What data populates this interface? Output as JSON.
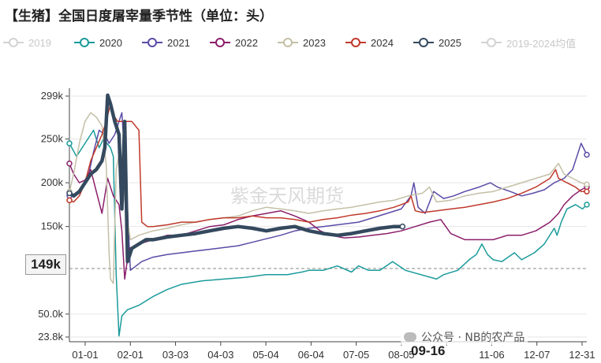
{
  "title": "【生猪】全国日度屠宰量季节性（单位：头）",
  "watermark": "紫金天风期货",
  "footer_credit": "公众号 · NB的农产品",
  "crosshair": {
    "x_label": "09-16",
    "y_label": "149k"
  },
  "chart_data": {
    "type": "line",
    "y_ticks": [
      {
        "value": 23.8,
        "label": "23.8k"
      },
      {
        "value": 50,
        "label": "50.0k"
      },
      {
        "value": 150,
        "label": "150k"
      },
      {
        "value": 200,
        "label": "200k"
      },
      {
        "value": 250,
        "label": "250k"
      },
      {
        "value": 299,
        "label": "299k"
      }
    ],
    "x_ticks": [
      "01-01",
      "02-01",
      "03-03",
      "04-03",
      "05-04",
      "06-04",
      "07-05",
      "08-05",
      "09-16",
      "11-06",
      "12-07",
      "12-31"
    ],
    "ylim": [
      23.8,
      299
    ],
    "series": [
      {
        "name": "2019",
        "color": "#d3d3d3",
        "width": 1.2,
        "values": []
      },
      {
        "name": "2020",
        "color": "#1a9a9a",
        "width": 1.5,
        "values": [
          [
            1,
            245
          ],
          [
            6,
            230
          ],
          [
            12,
            245
          ],
          [
            18,
            260
          ],
          [
            22,
            240
          ],
          [
            25,
            250
          ],
          [
            30,
            240
          ],
          [
            32,
            230
          ],
          [
            34,
            95
          ],
          [
            36,
            25
          ],
          [
            38,
            48
          ],
          [
            42,
            55
          ],
          [
            50,
            60
          ],
          [
            60,
            70
          ],
          [
            70,
            78
          ],
          [
            80,
            84
          ],
          [
            95,
            88
          ],
          [
            110,
            90
          ],
          [
            125,
            92
          ],
          [
            140,
            95
          ],
          [
            155,
            95
          ],
          [
            165,
            98
          ],
          [
            170,
            100
          ],
          [
            180,
            100
          ],
          [
            190,
            105
          ],
          [
            200,
            98
          ],
          [
            205,
            105
          ],
          [
            212,
            100
          ],
          [
            220,
            100
          ],
          [
            229,
            110
          ],
          [
            238,
            100
          ],
          [
            260,
            90
          ],
          [
            265,
            95
          ],
          [
            275,
            100
          ],
          [
            283,
            112
          ],
          [
            288,
            118
          ],
          [
            292,
            130
          ],
          [
            296,
            118
          ],
          [
            300,
            112
          ],
          [
            306,
            110
          ],
          [
            315,
            120
          ],
          [
            320,
            112
          ],
          [
            329,
            120
          ],
          [
            336,
            130
          ],
          [
            343,
            148
          ],
          [
            345,
            140
          ],
          [
            348,
            155
          ],
          [
            352,
            170
          ],
          [
            358,
            175
          ],
          [
            363,
            170
          ],
          [
            366,
            175
          ]
        ]
      },
      {
        "name": "2021",
        "color": "#5b4aa6",
        "width": 1.5,
        "values": [
          [
            1,
            185
          ],
          [
            6,
            188
          ],
          [
            10,
            195
          ],
          [
            14,
            205
          ],
          [
            18,
            235
          ],
          [
            22,
            260
          ],
          [
            26,
            255
          ],
          [
            29,
            245
          ],
          [
            33,
            255
          ],
          [
            36,
            270
          ],
          [
            38,
            280
          ],
          [
            41,
            205
          ],
          [
            44,
            100
          ],
          [
            48,
            105
          ],
          [
            52,
            110
          ],
          [
            60,
            115
          ],
          [
            70,
            118
          ],
          [
            80,
            120
          ],
          [
            90,
            122
          ],
          [
            100,
            124
          ],
          [
            110,
            126
          ],
          [
            120,
            128
          ],
          [
            130,
            132
          ],
          [
            140,
            136
          ],
          [
            150,
            140
          ],
          [
            160,
            145
          ],
          [
            170,
            148
          ],
          [
            180,
            150
          ],
          [
            190,
            152
          ],
          [
            205,
            155
          ],
          [
            215,
            160
          ],
          [
            225,
            165
          ],
          [
            235,
            170
          ],
          [
            242,
            185
          ],
          [
            244,
            200
          ],
          [
            247,
            172
          ],
          [
            252,
            165
          ],
          [
            258,
            190
          ],
          [
            265,
            182
          ],
          [
            272,
            185
          ],
          [
            280,
            190
          ],
          [
            290,
            195
          ],
          [
            298,
            200
          ],
          [
            303,
            195
          ],
          [
            312,
            190
          ],
          [
            320,
            185
          ],
          [
            328,
            188
          ],
          [
            336,
            192
          ],
          [
            343,
            200
          ],
          [
            350,
            205
          ],
          [
            356,
            215
          ],
          [
            360,
            235
          ],
          [
            362,
            245
          ],
          [
            366,
            232
          ]
        ]
      },
      {
        "name": "2022",
        "color": "#8b1e6a",
        "width": 1.5,
        "values": [
          [
            1,
            222
          ],
          [
            4,
            210
          ],
          [
            8,
            200
          ],
          [
            12,
            203
          ],
          [
            16,
            215
          ],
          [
            20,
            190
          ],
          [
            24,
            165
          ],
          [
            28,
            205
          ],
          [
            32,
            185
          ],
          [
            36,
            175
          ],
          [
            38,
            145
          ],
          [
            40,
            90
          ],
          [
            43,
            125
          ],
          [
            50,
            130
          ],
          [
            60,
            135
          ],
          [
            70,
            140
          ],
          [
            80,
            140
          ],
          [
            90,
            145
          ],
          [
            100,
            150
          ],
          [
            110,
            152
          ],
          [
            120,
            158
          ],
          [
            130,
            162
          ],
          [
            140,
            165
          ],
          [
            150,
            168
          ],
          [
            160,
            162
          ],
          [
            170,
            155
          ],
          [
            178,
            145
          ],
          [
            185,
            140
          ],
          [
            195,
            137
          ],
          [
            205,
            138
          ],
          [
            215,
            140
          ],
          [
            225,
            142
          ],
          [
            235,
            145
          ],
          [
            245,
            150
          ],
          [
            255,
            155
          ],
          [
            263,
            158
          ],
          [
            270,
            142
          ],
          [
            280,
            135
          ],
          [
            290,
            135
          ],
          [
            300,
            135
          ],
          [
            310,
            140
          ],
          [
            320,
            140
          ],
          [
            330,
            145
          ],
          [
            340,
            155
          ],
          [
            346,
            165
          ],
          [
            350,
            175
          ],
          [
            356,
            185
          ],
          [
            362,
            192
          ],
          [
            366,
            195
          ]
        ]
      },
      {
        "name": "2023",
        "color": "#c4bfa6",
        "width": 1.5,
        "values": [
          [
            1,
            190
          ],
          [
            4,
            210
          ],
          [
            8,
            245
          ],
          [
            12,
            270
          ],
          [
            16,
            280
          ],
          [
            20,
            275
          ],
          [
            24,
            265
          ],
          [
            27,
            220
          ],
          [
            29,
            120
          ],
          [
            30,
            90
          ],
          [
            32,
            85
          ],
          [
            34,
            215
          ],
          [
            37,
            240
          ],
          [
            40,
            180
          ],
          [
            44,
            135
          ],
          [
            50,
            140
          ],
          [
            60,
            145
          ],
          [
            70,
            148
          ],
          [
            80,
            152
          ],
          [
            90,
            155
          ],
          [
            100,
            158
          ],
          [
            110,
            160
          ],
          [
            120,
            162
          ],
          [
            130,
            168
          ],
          [
            140,
            172
          ],
          [
            150,
            170
          ],
          [
            160,
            168
          ],
          [
            170,
            165
          ],
          [
            180,
            168
          ],
          [
            190,
            170
          ],
          [
            200,
            172
          ],
          [
            210,
            175
          ],
          [
            220,
            178
          ],
          [
            230,
            180
          ],
          [
            240,
            185
          ],
          [
            250,
            188
          ],
          [
            255,
            195
          ],
          [
            260,
            178
          ],
          [
            270,
            180
          ],
          [
            280,
            185
          ],
          [
            290,
            188
          ],
          [
            300,
            190
          ],
          [
            310,
            195
          ],
          [
            320,
            200
          ],
          [
            330,
            205
          ],
          [
            340,
            210
          ],
          [
            346,
            222
          ],
          [
            350,
            210
          ],
          [
            356,
            205
          ],
          [
            362,
            200
          ],
          [
            366,
            198
          ]
        ]
      },
      {
        "name": "2024",
        "color": "#c0392b",
        "width": 1.5,
        "values": [
          [
            1,
            180
          ],
          [
            4,
            178
          ],
          [
            8,
            185
          ],
          [
            12,
            200
          ],
          [
            16,
            225
          ],
          [
            20,
            240
          ],
          [
            24,
            255
          ],
          [
            27,
            270
          ],
          [
            30,
            290
          ],
          [
            33,
            275
          ],
          [
            35,
            270
          ],
          [
            40,
            270
          ],
          [
            45,
            270
          ],
          [
            50,
            260
          ],
          [
            52,
            155
          ],
          [
            56,
            150
          ],
          [
            60,
            150
          ],
          [
            70,
            152
          ],
          [
            80,
            155
          ],
          [
            90,
            155
          ],
          [
            100,
            158
          ],
          [
            110,
            160
          ],
          [
            120,
            160
          ],
          [
            130,
            162
          ],
          [
            140,
            160
          ],
          [
            150,
            160
          ],
          [
            160,
            158
          ],
          [
            170,
            155
          ],
          [
            180,
            158
          ],
          [
            190,
            160
          ],
          [
            200,
            163
          ],
          [
            210,
            165
          ],
          [
            220,
            168
          ],
          [
            230,
            172
          ],
          [
            235,
            175
          ],
          [
            240,
            178
          ],
          [
            242,
            185
          ],
          [
            245,
            168
          ],
          [
            250,
            166
          ],
          [
            260,
            168
          ],
          [
            270,
            170
          ],
          [
            280,
            172
          ],
          [
            290,
            175
          ],
          [
            300,
            178
          ],
          [
            310,
            182
          ],
          [
            320,
            188
          ],
          [
            330,
            195
          ],
          [
            340,
            205
          ],
          [
            344,
            215
          ],
          [
            346,
            205
          ],
          [
            352,
            200
          ],
          [
            358,
            195
          ],
          [
            362,
            190
          ],
          [
            366,
            190
          ]
        ]
      },
      {
        "name": "2025",
        "color": "#34495e",
        "width": 4.5,
        "values": [
          [
            1,
            188
          ],
          [
            4,
            185
          ],
          [
            8,
            190
          ],
          [
            12,
            200
          ],
          [
            16,
            210
          ],
          [
            20,
            215
          ],
          [
            24,
            225
          ],
          [
            26,
            240
          ],
          [
            28,
            300
          ],
          [
            30,
            290
          ],
          [
            33,
            270
          ],
          [
            36,
            255
          ],
          [
            38,
            170
          ],
          [
            40,
            270
          ],
          [
            42,
            110
          ],
          [
            45,
            125
          ],
          [
            50,
            130
          ],
          [
            55,
            135
          ],
          [
            60,
            135
          ],
          [
            70,
            138
          ],
          [
            80,
            140
          ],
          [
            90,
            142
          ],
          [
            100,
            145
          ],
          [
            110,
            148
          ],
          [
            120,
            150
          ],
          [
            130,
            148
          ],
          [
            140,
            145
          ],
          [
            150,
            148
          ],
          [
            160,
            150
          ],
          [
            170,
            145
          ],
          [
            180,
            142
          ],
          [
            190,
            140
          ],
          [
            200,
            142
          ],
          [
            210,
            145
          ],
          [
            220,
            148
          ],
          [
            230,
            150
          ],
          [
            236,
            150
          ]
        ]
      },
      {
        "name": "2019-2024均值",
        "color": "#d3d3d3",
        "width": 1.2,
        "values": []
      }
    ]
  }
}
